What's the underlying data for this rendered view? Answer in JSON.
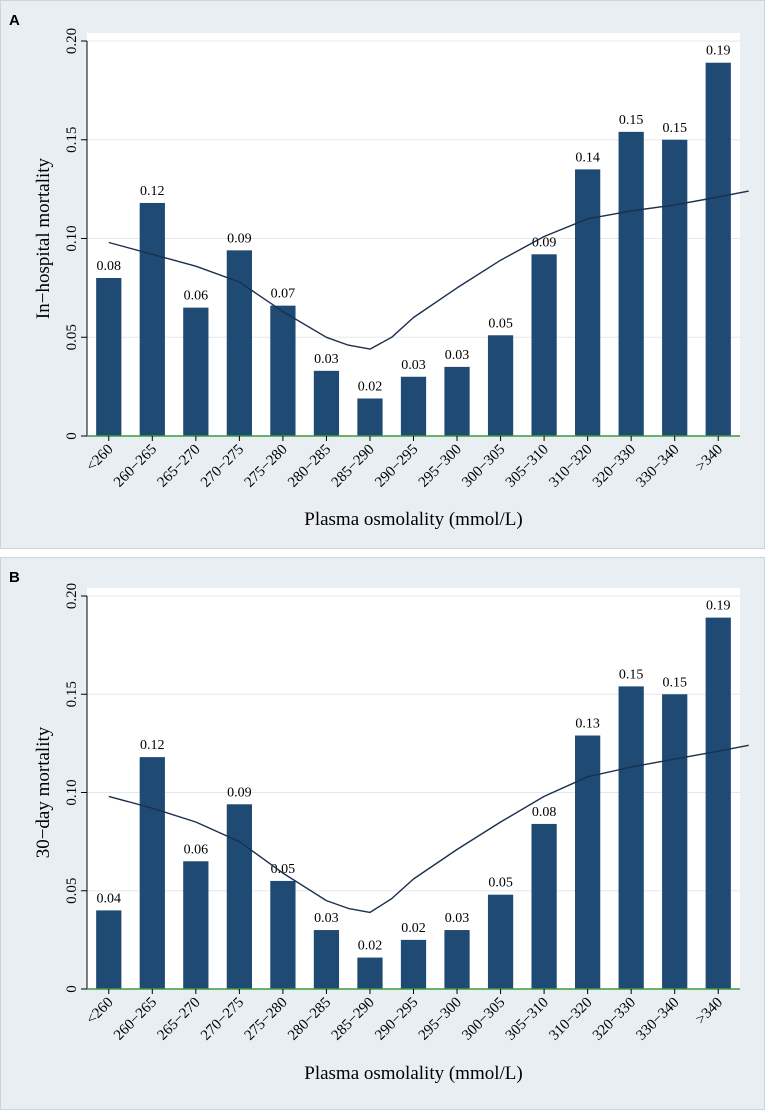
{
  "figure": {
    "x_axis_title": "Plasma osmolality (mmol/L)",
    "colors": {
      "bar": "#1f4a74",
      "curve": "#1b2f4e",
      "grid": "#e3e8ec",
      "baseline": "#3d9a3d",
      "panel_bg": "#e8eef2",
      "plot_bg": "#ffffff"
    }
  },
  "chart_data": [
    {
      "panel_label": "A",
      "type": "bar",
      "title": "",
      "xlabel": "Plasma osmolality (mmol/L)",
      "ylabel": "In−hospital mortality",
      "ylim": [
        0,
        0.2
      ],
      "yticks": [
        "0",
        "0.05",
        "0.10",
        "0.15",
        "0.20"
      ],
      "ytick_values": [
        0,
        0.05,
        0.1,
        0.15,
        0.2
      ],
      "grid": true,
      "categories": [
        "<260",
        "260−265",
        "265−270",
        "270−275",
        "275−280",
        "280−285",
        "285−290",
        "290−295",
        "295−300",
        "300−305",
        "305−310",
        "310−320",
        "320−330",
        "330−340",
        ">340"
      ],
      "values": [
        0.08,
        0.118,
        0.065,
        0.094,
        0.066,
        0.033,
        0.019,
        0.03,
        0.035,
        0.051,
        0.092,
        0.135,
        0.154,
        0.15,
        0.189
      ],
      "value_labels": [
        "0.08",
        "0.12",
        "0.06",
        "0.09",
        "0.07",
        "0.03",
        "0.02",
        "0.03",
        "0.03",
        "0.05",
        "0.09",
        "0.14",
        "0.15",
        "0.15",
        "0.19"
      ],
      "fitted_curve": {
        "x": [
          0,
          1,
          2,
          3,
          4,
          5,
          5.5,
          6,
          6.5,
          7,
          8,
          9,
          10,
          11,
          12,
          13,
          14,
          14.7
        ],
        "y": [
          0.098,
          0.092,
          0.086,
          0.078,
          0.063,
          0.05,
          0.046,
          0.044,
          0.05,
          0.06,
          0.075,
          0.089,
          0.101,
          0.11,
          0.114,
          0.117,
          0.121,
          0.124
        ]
      }
    },
    {
      "panel_label": "B",
      "type": "bar",
      "title": "",
      "xlabel": "Plasma osmolality (mmol/L)",
      "ylabel": "30−day mortality",
      "ylim": [
        0,
        0.2
      ],
      "yticks": [
        "0",
        "0.05",
        "0.10",
        "0.15",
        "0.20"
      ],
      "ytick_values": [
        0,
        0.05,
        0.1,
        0.15,
        0.2
      ],
      "grid": true,
      "categories": [
        "<260",
        "260−265",
        "265−270",
        "270−275",
        "275−280",
        "280−285",
        "285−290",
        "290−295",
        "295−300",
        "300−305",
        "305−310",
        "310−320",
        "320−330",
        "330−340",
        ">340"
      ],
      "values": [
        0.04,
        0.118,
        0.065,
        0.094,
        0.055,
        0.03,
        0.016,
        0.025,
        0.03,
        0.048,
        0.084,
        0.129,
        0.154,
        0.15,
        0.189
      ],
      "value_labels": [
        "0.04",
        "0.12",
        "0.06",
        "0.09",
        "0.05",
        "0.03",
        "0.02",
        "0.02",
        "0.03",
        "0.05",
        "0.08",
        "0.13",
        "0.15",
        "0.15",
        "0.19"
      ],
      "fitted_curve": {
        "x": [
          0,
          1,
          2,
          3,
          4,
          5,
          5.5,
          6,
          6.5,
          7,
          8,
          9,
          10,
          11,
          12,
          13,
          14,
          14.7
        ],
        "y": [
          0.098,
          0.092,
          0.085,
          0.075,
          0.059,
          0.045,
          0.041,
          0.039,
          0.046,
          0.056,
          0.071,
          0.085,
          0.098,
          0.108,
          0.113,
          0.117,
          0.121,
          0.124
        ]
      }
    }
  ]
}
